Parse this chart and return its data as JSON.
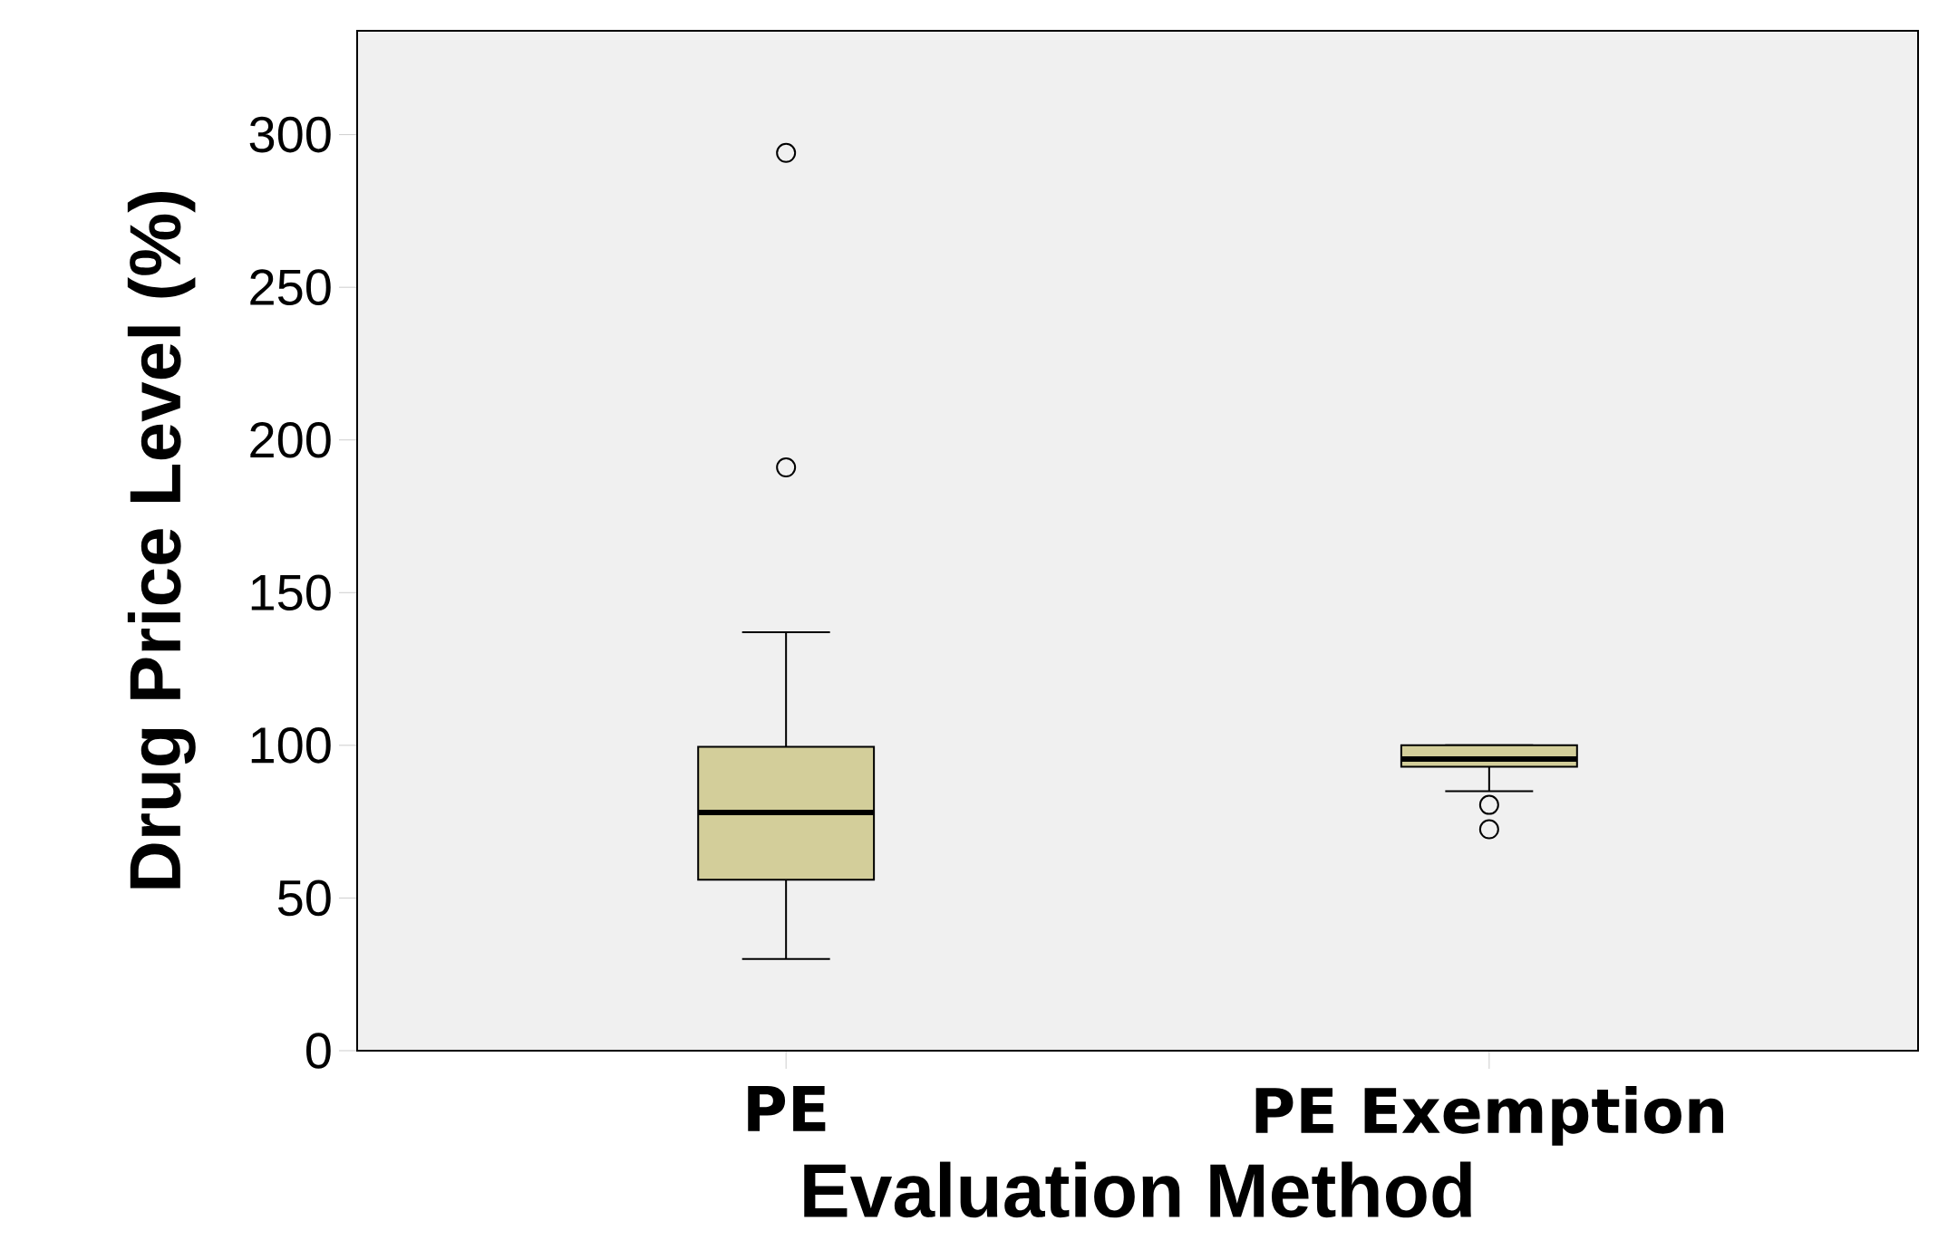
{
  "chart_data": {
    "type": "box",
    "xlabel": "Evaluation Method",
    "ylabel": "Drug Price Level (%)",
    "categories": [
      "PE",
      "PE Exemption"
    ],
    "color": "#d3ce9a",
    "boxes": [
      {
        "low": 30,
        "q1": 56,
        "median": 78,
        "q3": 99.5,
        "high": 137,
        "outliers": [
          191,
          294
        ]
      },
      {
        "low": 85,
        "q1": 93,
        "median": 95.5,
        "q3": 100,
        "high": 100,
        "outliers": [
          80.5,
          72.5
        ]
      }
    ],
    "ylim": [
      0,
      334
    ],
    "yticks": [
      0,
      50,
      100,
      150,
      200,
      250,
      300
    ]
  }
}
